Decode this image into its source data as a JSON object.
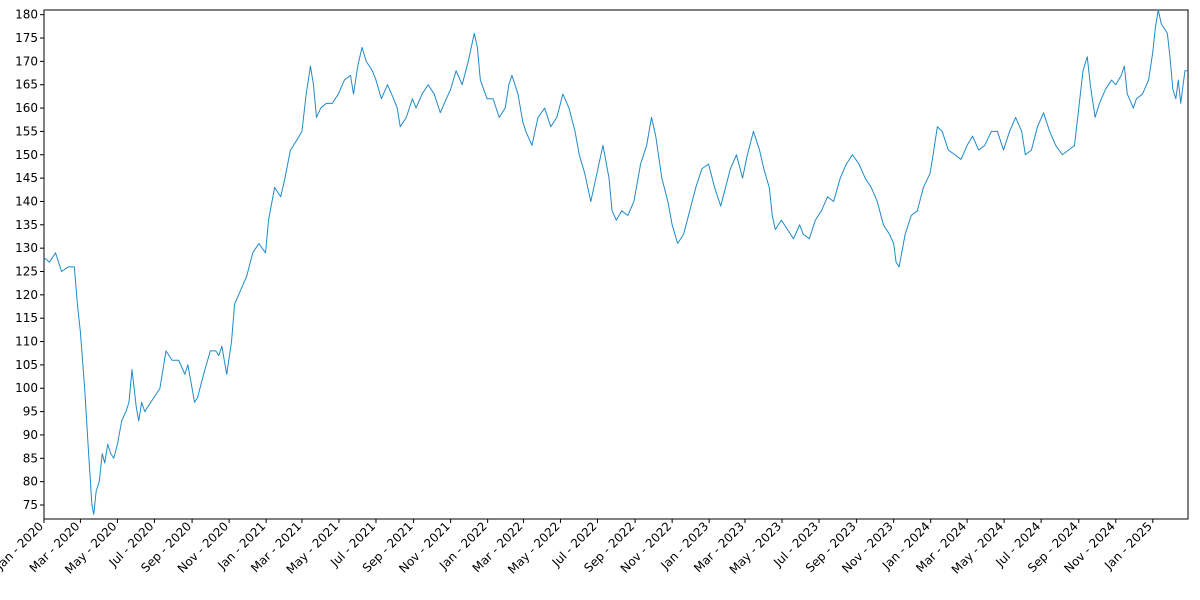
{
  "chart_data": {
    "type": "line",
    "title": "",
    "xlabel": "",
    "ylabel": "",
    "x_range": [
      "2020-01-01",
      "2025-02-28"
    ],
    "ylim": [
      72,
      181
    ],
    "y_ticks": [
      75,
      80,
      85,
      90,
      95,
      100,
      105,
      110,
      115,
      120,
      125,
      130,
      135,
      140,
      145,
      150,
      155,
      160,
      165,
      170,
      175,
      180
    ],
    "x_ticks": [
      {
        "date": "2020-01-01",
        "label": "Jan - 2020"
      },
      {
        "date": "2020-03-01",
        "label": "Mar - 2020"
      },
      {
        "date": "2020-05-01",
        "label": "May - 2020"
      },
      {
        "date": "2020-07-01",
        "label": "Jul - 2020"
      },
      {
        "date": "2020-09-01",
        "label": "Sep - 2020"
      },
      {
        "date": "2020-11-01",
        "label": "Nov - 2020"
      },
      {
        "date": "2021-01-01",
        "label": "Jan - 2021"
      },
      {
        "date": "2021-03-01",
        "label": "Mar - 2021"
      },
      {
        "date": "2021-05-01",
        "label": "May - 2021"
      },
      {
        "date": "2021-07-01",
        "label": "Jul - 2021"
      },
      {
        "date": "2021-09-01",
        "label": "Sep - 2021"
      },
      {
        "date": "2021-11-01",
        "label": "Nov - 2021"
      },
      {
        "date": "2022-01-01",
        "label": "Jan - 2022"
      },
      {
        "date": "2022-03-01",
        "label": "Mar - 2022"
      },
      {
        "date": "2022-05-01",
        "label": "May - 2022"
      },
      {
        "date": "2022-07-01",
        "label": "Jul - 2022"
      },
      {
        "date": "2022-09-01",
        "label": "Sep - 2022"
      },
      {
        "date": "2022-11-01",
        "label": "Nov - 2022"
      },
      {
        "date": "2023-01-01",
        "label": "Jan - 2023"
      },
      {
        "date": "2023-03-01",
        "label": "Mar - 2023"
      },
      {
        "date": "2023-05-01",
        "label": "May - 2023"
      },
      {
        "date": "2023-07-01",
        "label": "Jul - 2023"
      },
      {
        "date": "2023-09-01",
        "label": "Sep - 2023"
      },
      {
        "date": "2023-11-01",
        "label": "Nov - 2023"
      },
      {
        "date": "2024-01-01",
        "label": "Jan - 2024"
      },
      {
        "date": "2024-03-01",
        "label": "Mar - 2024"
      },
      {
        "date": "2024-05-01",
        "label": "May - 2024"
      },
      {
        "date": "2024-07-01",
        "label": "Jul - 2024"
      },
      {
        "date": "2024-09-01",
        "label": "Sep - 2024"
      },
      {
        "date": "2024-11-01",
        "label": "Nov - 2024"
      },
      {
        "date": "2025-01-01",
        "label": "Jan - 2025"
      }
    ],
    "grid": false,
    "legend": "none",
    "series": [
      {
        "color": "#1f8ac9",
        "points": [
          [
            "2020-01-01",
            128
          ],
          [
            "2020-01-10",
            127
          ],
          [
            "2020-01-20",
            129
          ],
          [
            "2020-01-30",
            125
          ],
          [
            "2020-02-10",
            126
          ],
          [
            "2020-02-20",
            126
          ],
          [
            "2020-02-25",
            118
          ],
          [
            "2020-03-01",
            112
          ],
          [
            "2020-03-08",
            100
          ],
          [
            "2020-03-15",
            85
          ],
          [
            "2020-03-20",
            75
          ],
          [
            "2020-03-23",
            73
          ],
          [
            "2020-03-27",
            78
          ],
          [
            "2020-04-01",
            80
          ],
          [
            "2020-04-06",
            86
          ],
          [
            "2020-04-10",
            84
          ],
          [
            "2020-04-15",
            88
          ],
          [
            "2020-04-20",
            86
          ],
          [
            "2020-04-25",
            85
          ],
          [
            "2020-05-01",
            88
          ],
          [
            "2020-05-08",
            93
          ],
          [
            "2020-05-15",
            95
          ],
          [
            "2020-05-20",
            97
          ],
          [
            "2020-05-25",
            104
          ],
          [
            "2020-06-01",
            96
          ],
          [
            "2020-06-05",
            93
          ],
          [
            "2020-06-10",
            97
          ],
          [
            "2020-06-15",
            95
          ],
          [
            "2020-06-20",
            96
          ],
          [
            "2020-06-30",
            98
          ],
          [
            "2020-07-10",
            100
          ],
          [
            "2020-07-20",
            108
          ],
          [
            "2020-07-30",
            106
          ],
          [
            "2020-08-10",
            106
          ],
          [
            "2020-08-20",
            103
          ],
          [
            "2020-08-25",
            105
          ],
          [
            "2020-09-01",
            100
          ],
          [
            "2020-09-05",
            97
          ],
          [
            "2020-09-10",
            98
          ],
          [
            "2020-09-20",
            103
          ],
          [
            "2020-10-01",
            108
          ],
          [
            "2020-10-10",
            108
          ],
          [
            "2020-10-15",
            107
          ],
          [
            "2020-10-20",
            109
          ],
          [
            "2020-10-28",
            103
          ],
          [
            "2020-11-05",
            110
          ],
          [
            "2020-11-10",
            118
          ],
          [
            "2020-11-20",
            121
          ],
          [
            "2020-11-30",
            124
          ],
          [
            "2020-12-10",
            129
          ],
          [
            "2020-12-20",
            131
          ],
          [
            "2020-12-31",
            129
          ],
          [
            "2021-01-05",
            136
          ],
          [
            "2021-01-15",
            143
          ],
          [
            "2021-01-25",
            141
          ],
          [
            "2021-02-01",
            145
          ],
          [
            "2021-02-10",
            151
          ],
          [
            "2021-02-20",
            153
          ],
          [
            "2021-03-01",
            155
          ],
          [
            "2021-03-08",
            163
          ],
          [
            "2021-03-15",
            169
          ],
          [
            "2021-03-20",
            165
          ],
          [
            "2021-03-25",
            158
          ],
          [
            "2021-04-01",
            160
          ],
          [
            "2021-04-10",
            161
          ],
          [
            "2021-04-20",
            161
          ],
          [
            "2021-04-30",
            163
          ],
          [
            "2021-05-10",
            166
          ],
          [
            "2021-05-20",
            167
          ],
          [
            "2021-05-25",
            163
          ],
          [
            "2021-06-01",
            169
          ],
          [
            "2021-06-08",
            173
          ],
          [
            "2021-06-15",
            170
          ],
          [
            "2021-06-25",
            168
          ],
          [
            "2021-07-01",
            166
          ],
          [
            "2021-07-10",
            162
          ],
          [
            "2021-07-20",
            165
          ],
          [
            "2021-07-30",
            162
          ],
          [
            "2021-08-05",
            160
          ],
          [
            "2021-08-10",
            156
          ],
          [
            "2021-08-20",
            158
          ],
          [
            "2021-08-30",
            162
          ],
          [
            "2021-09-05",
            160
          ],
          [
            "2021-09-15",
            163
          ],
          [
            "2021-09-25",
            165
          ],
          [
            "2021-10-05",
            163
          ],
          [
            "2021-10-15",
            159
          ],
          [
            "2021-10-25",
            162
          ],
          [
            "2021-11-01",
            164
          ],
          [
            "2021-11-10",
            168
          ],
          [
            "2021-11-20",
            165
          ],
          [
            "2021-11-30",
            170
          ],
          [
            "2021-12-10",
            176
          ],
          [
            "2021-12-15",
            173
          ],
          [
            "2021-12-20",
            166
          ],
          [
            "2021-12-31",
            162
          ],
          [
            "2022-01-10",
            162
          ],
          [
            "2022-01-20",
            158
          ],
          [
            "2022-01-30",
            160
          ],
          [
            "2022-02-05",
            165
          ],
          [
            "2022-02-10",
            167
          ],
          [
            "2022-02-20",
            163
          ],
          [
            "2022-02-28",
            157
          ],
          [
            "2022-03-05",
            155
          ],
          [
            "2022-03-15",
            152
          ],
          [
            "2022-03-25",
            158
          ],
          [
            "2022-04-05",
            160
          ],
          [
            "2022-04-15",
            156
          ],
          [
            "2022-04-25",
            158
          ],
          [
            "2022-05-05",
            163
          ],
          [
            "2022-05-15",
            160
          ],
          [
            "2022-05-25",
            155
          ],
          [
            "2022-06-01",
            150
          ],
          [
            "2022-06-10",
            146
          ],
          [
            "2022-06-20",
            140
          ],
          [
            "2022-06-30",
            146
          ],
          [
            "2022-07-10",
            152
          ],
          [
            "2022-07-20",
            145
          ],
          [
            "2022-07-25",
            138
          ],
          [
            "2022-08-01",
            136
          ],
          [
            "2022-08-10",
            138
          ],
          [
            "2022-08-20",
            137
          ],
          [
            "2022-08-30",
            140
          ],
          [
            "2022-09-10",
            148
          ],
          [
            "2022-09-20",
            152
          ],
          [
            "2022-09-28",
            158
          ],
          [
            "2022-10-05",
            154
          ],
          [
            "2022-10-15",
            145
          ],
          [
            "2022-10-25",
            140
          ],
          [
            "2022-11-01",
            135
          ],
          [
            "2022-11-10",
            131
          ],
          [
            "2022-11-20",
            133
          ],
          [
            "2022-11-30",
            138
          ],
          [
            "2022-12-10",
            143
          ],
          [
            "2022-12-20",
            147
          ],
          [
            "2022-12-31",
            148
          ],
          [
            "2023-01-10",
            143
          ],
          [
            "2023-01-20",
            139
          ],
          [
            "2023-01-30",
            144
          ],
          [
            "2023-02-05",
            147
          ],
          [
            "2023-02-15",
            150
          ],
          [
            "2023-02-25",
            145
          ],
          [
            "2023-03-05",
            150
          ],
          [
            "2023-03-15",
            155
          ],
          [
            "2023-03-25",
            151
          ],
          [
            "2023-04-01",
            147
          ],
          [
            "2023-04-10",
            143
          ],
          [
            "2023-04-15",
            137
          ],
          [
            "2023-04-20",
            134
          ],
          [
            "2023-04-30",
            136
          ],
          [
            "2023-05-10",
            134
          ],
          [
            "2023-05-20",
            132
          ],
          [
            "2023-05-30",
            135
          ],
          [
            "2023-06-05",
            133
          ],
          [
            "2023-06-15",
            132
          ],
          [
            "2023-06-25",
            136
          ],
          [
            "2023-07-05",
            138
          ],
          [
            "2023-07-15",
            141
          ],
          [
            "2023-07-25",
            140
          ],
          [
            "2023-08-05",
            145
          ],
          [
            "2023-08-15",
            148
          ],
          [
            "2023-08-25",
            150
          ],
          [
            "2023-09-05",
            148
          ],
          [
            "2023-09-15",
            145
          ],
          [
            "2023-09-25",
            143
          ],
          [
            "2023-10-05",
            140
          ],
          [
            "2023-10-15",
            135
          ],
          [
            "2023-10-25",
            133
          ],
          [
            "2023-11-01",
            131
          ],
          [
            "2023-11-05",
            127
          ],
          [
            "2023-11-10",
            126
          ],
          [
            "2023-11-20",
            133
          ],
          [
            "2023-11-30",
            137
          ],
          [
            "2023-12-10",
            138
          ],
          [
            "2023-12-20",
            143
          ],
          [
            "2023-12-31",
            146
          ],
          [
            "2024-01-05",
            150
          ],
          [
            "2024-01-12",
            156
          ],
          [
            "2024-01-20",
            155
          ],
          [
            "2024-01-30",
            151
          ],
          [
            "2024-02-10",
            150
          ],
          [
            "2024-02-20",
            149
          ],
          [
            "2024-03-01",
            152
          ],
          [
            "2024-03-10",
            154
          ],
          [
            "2024-03-20",
            151
          ],
          [
            "2024-03-30",
            152
          ],
          [
            "2024-04-10",
            155
          ],
          [
            "2024-04-20",
            155
          ],
          [
            "2024-04-30",
            151
          ],
          [
            "2024-05-10",
            155
          ],
          [
            "2024-05-20",
            158
          ],
          [
            "2024-05-30",
            155
          ],
          [
            "2024-06-05",
            150
          ],
          [
            "2024-06-15",
            151
          ],
          [
            "2024-06-25",
            156
          ],
          [
            "2024-07-05",
            159
          ],
          [
            "2024-07-15",
            155
          ],
          [
            "2024-07-25",
            152
          ],
          [
            "2024-08-05",
            150
          ],
          [
            "2024-08-15",
            151
          ],
          [
            "2024-08-25",
            152
          ],
          [
            "2024-09-01",
            160
          ],
          [
            "2024-09-08",
            168
          ],
          [
            "2024-09-15",
            171
          ],
          [
            "2024-09-20",
            165
          ],
          [
            "2024-09-28",
            158
          ],
          [
            "2024-10-05",
            161
          ],
          [
            "2024-10-15",
            164
          ],
          [
            "2024-10-25",
            166
          ],
          [
            "2024-11-01",
            165
          ],
          [
            "2024-11-10",
            167
          ],
          [
            "2024-11-15",
            169
          ],
          [
            "2024-11-20",
            163
          ],
          [
            "2024-11-30",
            160
          ],
          [
            "2024-12-05",
            162
          ],
          [
            "2024-12-15",
            163
          ],
          [
            "2024-12-25",
            166
          ],
          [
            "2025-01-01",
            172
          ],
          [
            "2025-01-05",
            177
          ],
          [
            "2025-01-10",
            181
          ],
          [
            "2025-01-15",
            178
          ],
          [
            "2025-01-25",
            176
          ],
          [
            "2025-01-30",
            170
          ],
          [
            "2025-02-03",
            164
          ],
          [
            "2025-02-08",
            162
          ],
          [
            "2025-02-12",
            166
          ],
          [
            "2025-02-16",
            161
          ],
          [
            "2025-02-20",
            165
          ],
          [
            "2025-02-23",
            168
          ],
          [
            "2025-02-28",
            168
          ]
        ]
      }
    ]
  }
}
